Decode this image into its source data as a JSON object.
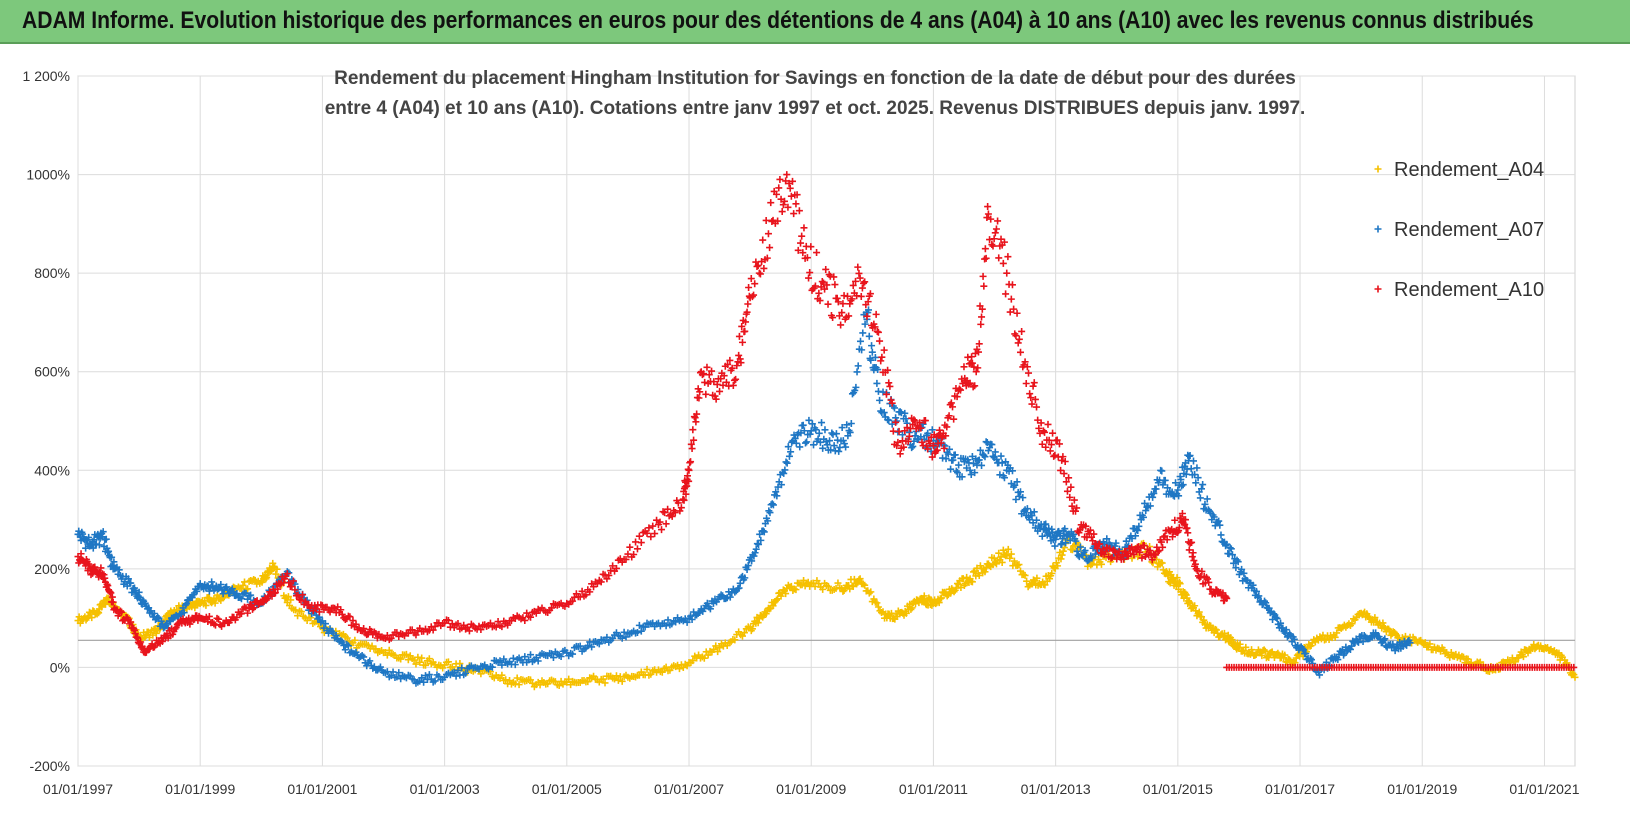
{
  "banner": {
    "title": "ADAM Informe. Evolution historique des performances en euros pour des détentions de 4 ans (A04) à 10 ans (A10) avec les revenus connus distribués"
  },
  "chart_data": {
    "type": "scatter",
    "title_lines": [
      "Rendement du placement Hingham Institution for Savings en fonction de la date de début pour des durées",
      "entre 4 (A04) et 10 ans (A10). Cotations entre janv 1997 et oct. 2025. Revenus DISTRIBUES depuis janv. 1997."
    ],
    "ylabel": "",
    "xlabel": "",
    "ylim": [
      -200,
      1200
    ],
    "yticks": [
      -200,
      0,
      200,
      400,
      600,
      800,
      1000,
      1200
    ],
    "ytick_labels": [
      "-200%",
      "0%",
      "200%",
      "400%",
      "600%",
      "800%",
      "1000%",
      "1 200%"
    ],
    "xlim": [
      1997.0,
      2021.5
    ],
    "xticks": [
      1997,
      1999,
      2001,
      2003,
      2005,
      2007,
      2009,
      2011,
      2013,
      2015,
      2017,
      2019,
      2021
    ],
    "xtick_labels": [
      "01/01/1997",
      "01/01/1999",
      "01/01/2001",
      "01/01/2003",
      "01/01/2005",
      "01/01/2007",
      "01/01/2009",
      "01/01/2011",
      "01/01/2013",
      "01/01/2015",
      "01/01/2017",
      "01/01/2019",
      "01/01/2021"
    ],
    "reference_line": 55,
    "legend_position": "right",
    "series": [
      {
        "name": "Rendement_A04",
        "color": "#f5c000",
        "x": [
          1997.0,
          1997.3,
          1997.5,
          1997.8,
          1998.0,
          1998.3,
          1998.5,
          1998.8,
          1999.0,
          1999.3,
          1999.6,
          2000.0,
          2000.2,
          2000.5,
          2001.0,
          2001.5,
          2002.0,
          2002.5,
          2003.0,
          2003.5,
          2004.0,
          2004.5,
          2005.0,
          2005.5,
          2006.0,
          2006.5,
          2007.0,
          2007.5,
          2008.0,
          2008.3,
          2008.6,
          2009.0,
          2009.5,
          2009.8,
          2010.2,
          2010.5,
          2010.8,
          2011.0,
          2011.3,
          2011.6,
          2011.9,
          2012.2,
          2012.6,
          2012.9,
          2013.2,
          2013.6,
          2014.0,
          2014.5,
          2014.8,
          2015.0,
          2015.2,
          2015.5,
          2015.8,
          2016.0,
          2016.3,
          2016.6,
          2016.9,
          2017.2,
          2017.6,
          2018.0,
          2018.3,
          2018.6,
          2019.0,
          2019.4,
          2019.8,
          2020.2,
          2020.6,
          2020.9,
          2021.2,
          2021.5
        ],
        "y": [
          95,
          110,
          140,
          100,
          60,
          75,
          110,
          125,
          130,
          140,
          160,
          175,
          205,
          120,
          80,
          50,
          30,
          15,
          5,
          -5,
          -25,
          -35,
          -30,
          -25,
          -20,
          -5,
          10,
          40,
          80,
          120,
          160,
          170,
          160,
          180,
          100,
          110,
          140,
          130,
          160,
          180,
          210,
          230,
          170,
          180,
          260,
          210,
          230,
          240,
          190,
          170,
          130,
          80,
          60,
          40,
          30,
          25,
          10,
          50,
          70,
          110,
          90,
          60,
          50,
          30,
          10,
          -5,
          25,
          45,
          30,
          -20
        ]
      },
      {
        "name": "Rendement_A07",
        "color": "#1f77c4",
        "x": [
          1997.0,
          1997.2,
          1997.4,
          1997.6,
          1997.9,
          1998.1,
          1998.4,
          1998.7,
          1999.0,
          1999.3,
          1999.6,
          2000.0,
          2000.4,
          2000.8,
          2001.2,
          2001.6,
          2002.0,
          2002.5,
          2003.0,
          2003.5,
          2004.0,
          2004.5,
          2005.0,
          2005.5,
          2006.0,
          2006.5,
          2007.0,
          2007.4,
          2007.8,
          2008.1,
          2008.4,
          2008.7,
          2009.0,
          2009.3,
          2009.6,
          2009.9,
          2010.1,
          2010.4,
          2010.7,
          2011.0,
          2011.3,
          2011.6,
          2011.9,
          2012.2,
          2012.5,
          2012.8,
          2013.0,
          2013.2,
          2013.5,
          2013.8,
          2014.1,
          2014.4,
          2014.7,
          2015.0,
          2015.2,
          2015.5,
          2015.8,
          2016.1,
          2016.4,
          2016.7,
          2017.0,
          2017.3,
          2017.6,
          2017.9,
          2018.2,
          2018.5,
          2018.8
        ],
        "y": [
          270,
          250,
          265,
          200,
          160,
          130,
          80,
          110,
          170,
          160,
          150,
          130,
          190,
          120,
          60,
          20,
          -10,
          -25,
          -20,
          0,
          10,
          20,
          30,
          50,
          70,
          90,
          100,
          130,
          160,
          240,
          350,
          460,
          480,
          460,
          470,
          720,
          560,
          500,
          470,
          460,
          420,
          400,
          440,
          400,
          320,
          280,
          260,
          270,
          220,
          250,
          230,
          300,
          380,
          360,
          430,
          320,
          250,
          180,
          130,
          80,
          40,
          -10,
          20,
          50,
          70,
          40,
          50
        ]
      },
      {
        "name": "Rendement_A10",
        "color": "#e8141c",
        "x": [
          1997.0,
          1997.2,
          1997.4,
          1997.6,
          1997.9,
          1998.1,
          1998.4,
          1998.7,
          1999.0,
          1999.4,
          1999.8,
          2000.1,
          2000.4,
          2000.8,
          2001.2,
          2001.6,
          2002.0,
          2002.5,
          2003.0,
          2003.5,
          2004.0,
          2004.5,
          2005.0,
          2005.5,
          2006.0,
          2006.5,
          2006.9,
          2007.0,
          2007.2,
          2007.5,
          2007.8,
          2008.0,
          2008.3,
          2008.6,
          2008.9,
          2009.2,
          2009.5,
          2009.8,
          2010.1,
          2010.4,
          2010.7,
          2011.0,
          2011.2,
          2011.5,
          2011.7,
          2011.9,
          2012.2,
          2012.5,
          2012.8,
          2013.1,
          2013.4,
          2013.7,
          2014.0,
          2014.3,
          2014.6,
          2014.9,
          2015.1,
          2015.3,
          2015.6,
          2015.8
        ],
        "y": [
          225,
          200,
          190,
          120,
          80,
          30,
          60,
          90,
          100,
          90,
          120,
          140,
          185,
          120,
          120,
          80,
          60,
          70,
          90,
          80,
          90,
          110,
          130,
          170,
          230,
          290,
          340,
          400,
          600,
          560,
          620,
          750,
          880,
          1000,
          830,
          780,
          720,
          790,
          680,
          450,
          500,
          450,
          470,
          610,
          600,
          920,
          800,
          620,
          480,
          420,
          280,
          250,
          220,
          240,
          230,
          280,
          300,
          200,
          150,
          140
        ]
      }
    ],
    "flat_series": {
      "name": "Rendement_A10",
      "x_start": 2015.8,
      "x_end": 2021.5,
      "y": 0
    }
  }
}
